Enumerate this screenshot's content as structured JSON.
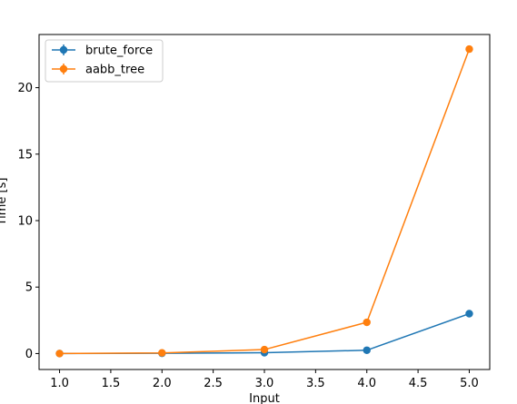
{
  "chart_data": {
    "type": "line",
    "title": "",
    "xlabel": "Input",
    "ylabel": "Time [s]",
    "xlim": [
      0.8,
      5.2
    ],
    "ylim": [
      -1.2,
      24.0
    ],
    "x_ticks": [
      1.0,
      1.5,
      2.0,
      2.5,
      3.0,
      3.5,
      4.0,
      4.5,
      5.0
    ],
    "x_tick_labels": [
      "1.0",
      "1.5",
      "2.0",
      "2.5",
      "3.0",
      "3.5",
      "4.0",
      "4.5",
      "5.0"
    ],
    "y_ticks": [
      0,
      5,
      10,
      15,
      20
    ],
    "y_tick_labels": [
      "0",
      "5",
      "10",
      "15",
      "20"
    ],
    "grid": false,
    "legend_position": "top-left",
    "x": [
      1.0,
      2.0,
      3.0,
      4.0,
      5.0
    ],
    "series": [
      {
        "name": "brute_force",
        "color": "#1f77b4",
        "marker": "circle-with-errorbar",
        "values": [
          0.0,
          0.02,
          0.06,
          0.25,
          3.0
        ]
      },
      {
        "name": "aabb_tree",
        "color": "#ff7f0e",
        "marker": "circle-with-errorbar",
        "values": [
          0.0,
          0.05,
          0.3,
          2.35,
          22.9
        ]
      }
    ]
  }
}
